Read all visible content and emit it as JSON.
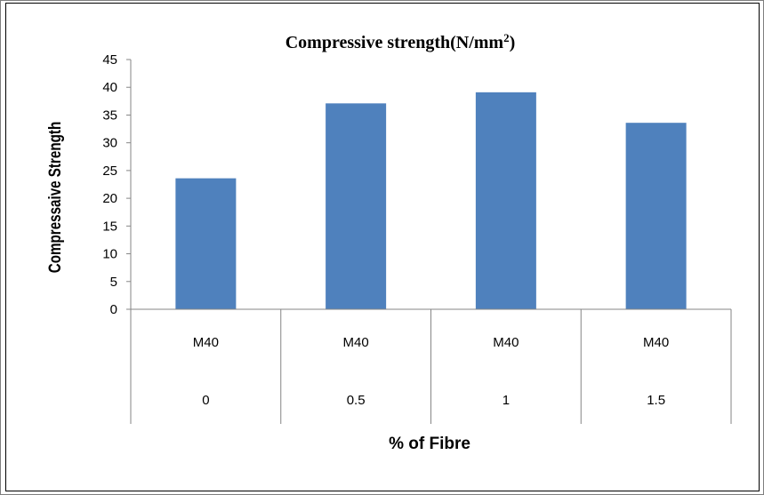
{
  "chart_data": {
    "type": "bar",
    "title": "Compressive strength(N/mm",
    "title_sup": "2",
    "title_end": ")",
    "ylabel": "Compressaive Strength",
    "xlabel": "% of Fibre",
    "ylim": [
      0,
      45
    ],
    "y_ticks": [
      "0",
      "5",
      "10",
      "15",
      "20",
      "25",
      "30",
      "35",
      "40",
      "45"
    ],
    "categories": [
      {
        "group": "M40",
        "fibre": "0"
      },
      {
        "group": "M40",
        "fibre": "0.5"
      },
      {
        "group": "M40",
        "fibre": "1"
      },
      {
        "group": "M40",
        "fibre": "1.5"
      }
    ],
    "values": [
      23.6,
      37.1,
      39.1,
      33.6
    ],
    "bar_color": "#4f81bd",
    "grid": false,
    "legend": "none"
  }
}
